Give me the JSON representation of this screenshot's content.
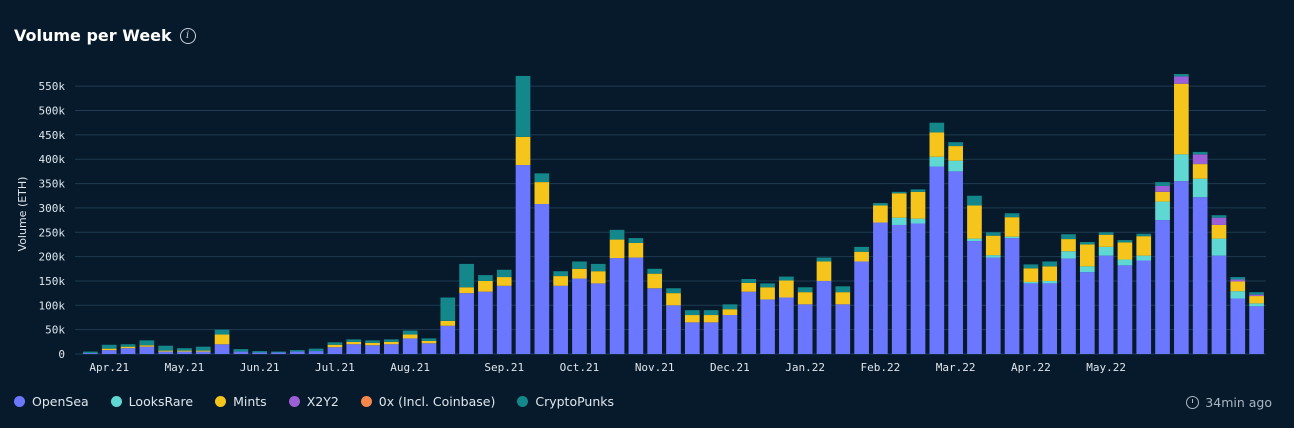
{
  "header": {
    "title": "Volume per Week",
    "info_icon": "info-icon"
  },
  "footer": {
    "updated": "34min ago",
    "updated_icon": "clock-icon"
  },
  "chart_data": {
    "type": "bar",
    "stacked": true,
    "title": "Volume per Week",
    "ylabel": "Volume (ETH)",
    "xlabel": "",
    "ylim": [
      0,
      575000
    ],
    "yticks": [
      0,
      50000,
      100000,
      150000,
      200000,
      250000,
      300000,
      350000,
      400000,
      450000,
      500000,
      550000
    ],
    "ytick_labels": [
      "0",
      "50k",
      "100k",
      "150k",
      "200k",
      "250k",
      "300k",
      "350k",
      "400k",
      "450k",
      "500k",
      "550k"
    ],
    "x_tick_labels": [
      {
        "label": "Apr.21",
        "index": 1
      },
      {
        "label": "May.21",
        "index": 5
      },
      {
        "label": "Jun.21",
        "index": 9
      },
      {
        "label": "Jul.21",
        "index": 13
      },
      {
        "label": "Aug.21",
        "index": 17
      },
      {
        "label": "Sep.21",
        "index": 22
      },
      {
        "label": "Oct.21",
        "index": 26
      },
      {
        "label": "Nov.21",
        "index": 30
      },
      {
        "label": "Dec.21",
        "index": 34
      },
      {
        "label": "Jan.22",
        "index": 38
      },
      {
        "label": "Feb.22",
        "index": 42
      },
      {
        "label": "Mar.22",
        "index": 46
      },
      {
        "label": "Apr.22",
        "index": 50
      },
      {
        "label": "May.22",
        "index": 54
      }
    ],
    "grid": true,
    "legend_position": "bottom-left",
    "series": [
      {
        "name": "OpenSea",
        "color": "#6b77ff",
        "values": [
          2000,
          8000,
          12000,
          15000,
          5000,
          5000,
          5000,
          20000,
          5000,
          3000,
          3000,
          5000,
          6000,
          14000,
          20000,
          18000,
          20000,
          32000,
          22000,
          58000,
          125000,
          128000,
          140000,
          388000,
          308000,
          140000,
          155000,
          145000,
          197000,
          198000,
          135000,
          100000,
          65000,
          65000,
          80000,
          128000,
          112000,
          116000,
          102000,
          150000,
          102000,
          190000,
          270000,
          265000,
          268000,
          385000,
          375000,
          232000,
          198000,
          238000,
          145000,
          145000,
          196000,
          168000,
          202000,
          182000,
          192000,
          275000,
          355000,
          322000,
          202000,
          114000,
          98000
        ]
      },
      {
        "name": "LooksRare",
        "color": "#5fd8d4",
        "values": [
          0,
          0,
          0,
          0,
          0,
          0,
          0,
          0,
          0,
          0,
          0,
          0,
          0,
          0,
          0,
          0,
          0,
          0,
          0,
          0,
          0,
          0,
          0,
          0,
          0,
          0,
          0,
          0,
          0,
          0,
          0,
          0,
          0,
          0,
          0,
          0,
          0,
          0,
          0,
          0,
          0,
          0,
          0,
          15000,
          10000,
          20000,
          22000,
          5000,
          5000,
          3000,
          3000,
          5000,
          15000,
          12000,
          18000,
          12000,
          10000,
          38000,
          55000,
          38000,
          35000,
          15000,
          6000
        ]
      },
      {
        "name": "Mints",
        "color": "#f6c51c",
        "values": [
          0,
          3000,
          3000,
          3000,
          2000,
          2000,
          2000,
          20000,
          0,
          0,
          0,
          0,
          0,
          5000,
          5000,
          5000,
          5000,
          8000,
          5000,
          10000,
          12000,
          22000,
          18000,
          58000,
          45000,
          20000,
          20000,
          25000,
          38000,
          30000,
          30000,
          25000,
          15000,
          15000,
          12000,
          18000,
          25000,
          35000,
          25000,
          40000,
          25000,
          20000,
          35000,
          50000,
          55000,
          50000,
          30000,
          68000,
          40000,
          40000,
          28000,
          30000,
          25000,
          45000,
          25000,
          35000,
          40000,
          20000,
          145000,
          30000,
          28000,
          20000,
          15000
        ]
      },
      {
        "name": "X2Y2",
        "color": "#9b5fd6",
        "values": [
          0,
          0,
          0,
          0,
          0,
          0,
          0,
          0,
          0,
          0,
          0,
          0,
          0,
          0,
          0,
          0,
          0,
          0,
          0,
          0,
          0,
          0,
          0,
          0,
          0,
          0,
          0,
          0,
          0,
          0,
          0,
          0,
          0,
          0,
          0,
          0,
          0,
          0,
          0,
          0,
          0,
          0,
          0,
          0,
          0,
          0,
          0,
          0,
          0,
          0,
          0,
          0,
          0,
          0,
          0,
          0,
          0,
          12000,
          15000,
          20000,
          15000,
          4000,
          3000
        ]
      },
      {
        "name": "0x (Incl. Coinbase)",
        "color": "#f5874a",
        "values": [
          0,
          0,
          0,
          0,
          0,
          0,
          0,
          0,
          0,
          0,
          0,
          0,
          0,
          0,
          0,
          0,
          0,
          0,
          0,
          0,
          0,
          0,
          0,
          0,
          0,
          0,
          0,
          0,
          0,
          0,
          0,
          0,
          0,
          0,
          0,
          0,
          0,
          0,
          0,
          0,
          0,
          0,
          0,
          0,
          0,
          0,
          0,
          0,
          0,
          0,
          0,
          0,
          0,
          0,
          0,
          0,
          0,
          0,
          0,
          0,
          0,
          0,
          0
        ]
      },
      {
        "name": "CryptoPunks",
        "color": "#14878a",
        "values": [
          3000,
          8000,
          5000,
          10000,
          10000,
          5000,
          8000,
          10000,
          5000,
          3000,
          2000,
          3000,
          5000,
          5000,
          5000,
          5000,
          5000,
          8000,
          5000,
          48000,
          48000,
          12000,
          15000,
          125000,
          18000,
          10000,
          15000,
          15000,
          20000,
          10000,
          10000,
          10000,
          10000,
          10000,
          10000,
          8000,
          8000,
          8000,
          10000,
          8000,
          12000,
          10000,
          5000,
          3000,
          5000,
          20000,
          8000,
          20000,
          7000,
          8000,
          8000,
          10000,
          10000,
          5000,
          5000,
          5000,
          5000,
          8000,
          5000,
          5000,
          5000,
          5000,
          5000
        ]
      }
    ]
  }
}
